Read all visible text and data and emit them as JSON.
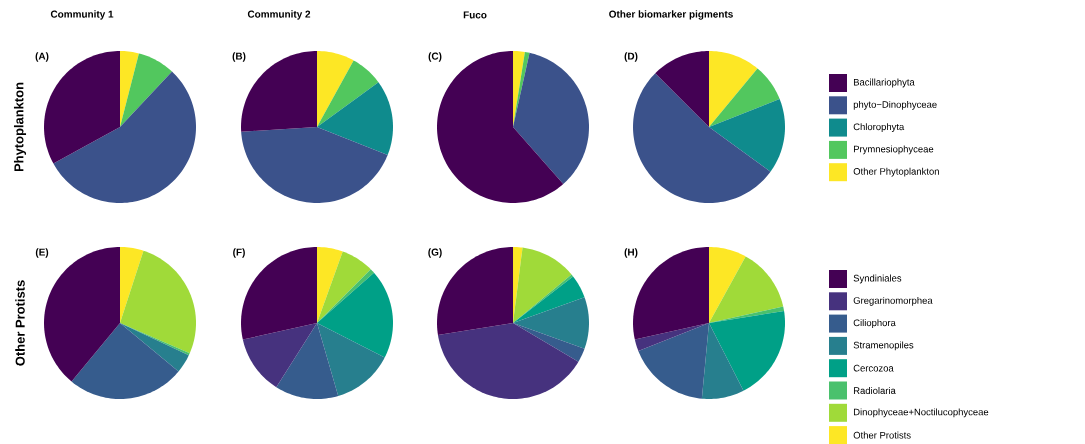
{
  "chart_data": [
    {
      "type": "pie",
      "title": "Community 1",
      "ylabel": "Phytoplankton",
      "annotations": [
        "(A)"
      ],
      "categories": [
        null,
        null,
        null,
        null,
        null
      ],
      "values": [
        33,
        55,
        0,
        8,
        4
      ],
      "colors": [
        "#440154",
        "#3b528b",
        "#0f8b8d",
        "#52c75e",
        "#fde725"
      ]
    },
    {
      "type": "pie",
      "title": "Community 2",
      "annotations": [
        "(B)"
      ],
      "categories": [
        null,
        null,
        null,
        null,
        null
      ],
      "values": [
        26,
        43,
        16,
        7,
        8
      ],
      "colors": [
        "#440154",
        "#3b528b",
        "#0f8b8d",
        "#52c75e",
        "#fde725"
      ]
    },
    {
      "type": "pie",
      "title": "Fuco",
      "annotations": [
        "(C)"
      ],
      "categories": [
        null,
        null,
        null,
        null,
        null
      ],
      "values": [
        61.5,
        35,
        0,
        1,
        2.5
      ],
      "colors": [
        "#440154",
        "#3b528b",
        "#0f8b8d",
        "#52c75e",
        "#fde725"
      ]
    },
    {
      "type": "pie",
      "title": "Other biomarker pigments",
      "annotations": [
        "(D)"
      ],
      "legend": "right",
      "categories": [
        "Bacillariophyta",
        "phyto−Dinophyceae",
        "Chlorophyta",
        "Prymnesiophyceae",
        "Other Phytoplankton"
      ],
      "values": [
        12.5,
        52.5,
        16,
        8,
        11
      ],
      "colors": [
        "#440154",
        "#3b528b",
        "#0f8b8d",
        "#52c75e",
        "#fde725"
      ]
    },
    {
      "type": "pie",
      "ylabel": "Other Protists",
      "annotations": [
        "(E)"
      ],
      "categories": [
        null,
        null,
        null,
        null,
        null,
        null,
        null,
        null
      ],
      "values": [
        39,
        0,
        25,
        4,
        0,
        0.5,
        26.5,
        5
      ],
      "colors": [
        "#440154",
        "#46327e",
        "#365c8d",
        "#277f8e",
        "#00a087",
        "#4ac16d",
        "#a0da39",
        "#fde725"
      ]
    },
    {
      "type": "pie",
      "annotations": [
        "(F)"
      ],
      "categories": [
        null,
        null,
        null,
        null,
        null,
        null,
        null,
        null
      ],
      "values": [
        28.5,
        12.5,
        13.5,
        13,
        19,
        1,
        7,
        5.5
      ],
      "colors": [
        "#440154",
        "#46327e",
        "#365c8d",
        "#277f8e",
        "#00a087",
        "#4ac16d",
        "#a0da39",
        "#fde725"
      ]
    },
    {
      "type": "pie",
      "annotations": [
        "(G)"
      ],
      "categories": [
        null,
        null,
        null,
        null,
        null,
        null,
        null,
        null
      ],
      "values": [
        27.5,
        39,
        3,
        11,
        5,
        0.5,
        12,
        2
      ],
      "colors": [
        "#440154",
        "#46327e",
        "#365c8d",
        "#277f8e",
        "#00a087",
        "#4ac16d",
        "#a0da39",
        "#fde725"
      ]
    },
    {
      "type": "pie",
      "annotations": [
        "(H)"
      ],
      "legend": "right",
      "categories": [
        "Syndiniales",
        "Gregarinomorphea",
        "Ciliophora",
        "Stramenopiles",
        "Cercozoa",
        "Radiolaria",
        "Dinophyceae+Noctilucophyceae",
        "Other Protists"
      ],
      "values": [
        28.5,
        2.5,
        17.5,
        9,
        20,
        1,
        13.5,
        8
      ],
      "colors": [
        "#440154",
        "#46327e",
        "#365c8d",
        "#277f8e",
        "#00a087",
        "#4ac16d",
        "#a0da39",
        "#fde725"
      ]
    }
  ]
}
